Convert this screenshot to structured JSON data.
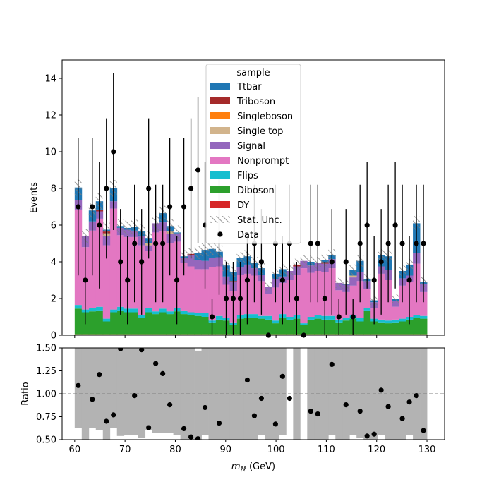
{
  "chart_data": {
    "type": "bar",
    "stacked": true,
    "main_panel": {
      "xlim": [
        57.5,
        133.5
      ],
      "ylim": [
        0,
        15
      ],
      "ylabel": "Events",
      "yticks": [
        0,
        2,
        4,
        6,
        8,
        10,
        12,
        14
      ],
      "bins": [
        60,
        61.4,
        62.8,
        64.2,
        65.6,
        67,
        68.4,
        69.8,
        71.2,
        72.6,
        74,
        75.4,
        76.8,
        78.2,
        79.6,
        81,
        82.4,
        83.8,
        85.2,
        86.6,
        88,
        89.4,
        90.8,
        92.2,
        93.6,
        95,
        96.4,
        97.8,
        99.2,
        100.6,
        102,
        103.4,
        104.8,
        106.2,
        107.6,
        109,
        110.4,
        111.8,
        113.2,
        114.6,
        116,
        117.4,
        118.8,
        120.2,
        121.6,
        123,
        124.4,
        125.8,
        127.2,
        128.6,
        130
      ],
      "series": [
        {
          "name": "DY",
          "color": "#d62728",
          "values": [
            0.05,
            0.05,
            0.05,
            0.05,
            0.05,
            0.05,
            0.05,
            0.05,
            0.05,
            0.05,
            0.05,
            0.05,
            0.05,
            0.05,
            0.05,
            0.05,
            0.05,
            0.05,
            0.05,
            0.05,
            0.05,
            0.05,
            0.05,
            0.05,
            0.05,
            0.05,
            0.05,
            0.05,
            0.05,
            0.05,
            0.05,
            0.05,
            0.05,
            0.05,
            0.05,
            0.05,
            0.05,
            0.05,
            0.05,
            0.05,
            0.05,
            0.05,
            0.05,
            0.05,
            0.05,
            0.05,
            0.05,
            0.05,
            0.05,
            0.05
          ]
        },
        {
          "name": "Diboson",
          "color": "#2ca02c",
          "values": [
            1.4,
            1.2,
            1.25,
            1.3,
            0.7,
            1.2,
            1.3,
            1.2,
            1.2,
            0.9,
            1.2,
            1.1,
            1.2,
            1.1,
            1.25,
            1.1,
            1.05,
            1.0,
            0.95,
            0.65,
            0.8,
            0.75,
            0.5,
            0.85,
            0.9,
            0.9,
            0.85,
            0.8,
            0.6,
            0.9,
            0.8,
            0.85,
            0.5,
            0.8,
            0.85,
            0.8,
            0.8,
            0.65,
            0.75,
            0.85,
            0.7,
            1.3,
            0.7,
            0.65,
            0.6,
            0.65,
            0.7,
            0.8,
            0.9,
            0.85
          ]
        },
        {
          "name": "Flips",
          "color": "#17becf",
          "values": [
            0.2,
            0.15,
            0.2,
            0.2,
            0.15,
            0.15,
            0.2,
            0.2,
            0.2,
            0.15,
            0.25,
            0.15,
            0.2,
            0.15,
            0.2,
            0.2,
            0.15,
            0.15,
            0.2,
            0.1,
            0.2,
            0.15,
            0.15,
            0.2,
            0.2,
            0.2,
            0.15,
            0.2,
            0.15,
            0.2,
            0.15,
            0.2,
            0.1,
            0.15,
            0.2,
            0.2,
            0.2,
            0.15,
            0.15,
            0.2,
            0.2,
            0.15,
            0.15,
            0.15,
            0.15,
            0.15,
            0.15,
            0.15,
            0.15,
            0.15
          ]
        },
        {
          "name": "Nonprompt",
          "color": "#e377c2",
          "values": [
            5.2,
            3.4,
            4.2,
            4.8,
            4.0,
            5.5,
            3.9,
            3.9,
            3.9,
            3.8,
            3.1,
            4.3,
            4.2,
            3.7,
            3.6,
            2.6,
            2.5,
            2.4,
            2.4,
            2.9,
            2.7,
            1.8,
            1.7,
            2.2,
            2.2,
            2.1,
            1.9,
            1.2,
            1.8,
            1.7,
            2.0,
            2.2,
            3.0,
            2.4,
            2.4,
            2.4,
            2.6,
            1.6,
            1.4,
            1.6,
            2.0,
            1.0,
            0.6,
            2.5,
            2.2,
            0.7,
            1.8,
            1.9,
            2.8,
            1.3
          ]
        },
        {
          "name": "Signal",
          "color": "#9467bd",
          "values": [
            0.5,
            0.6,
            0.5,
            0.4,
            0.5,
            0.4,
            0.4,
            0.4,
            0.35,
            0.5,
            0.3,
            0.5,
            0.5,
            0.5,
            0.45,
            0.25,
            0.6,
            0.5,
            0.45,
            0.5,
            0.5,
            0.45,
            0.5,
            0.4,
            0.5,
            0.4,
            0.35,
            0.4,
            0.45,
            0.35,
            0.5,
            0.45,
            0.4,
            0.4,
            0.45,
            0.45,
            0.5,
            0.4,
            0.4,
            0.45,
            0.5,
            0.45,
            0.3,
            0.4,
            0.55,
            0.3,
            0.4,
            0.35,
            0.6,
            0.45
          ]
        },
        {
          "name": "Single top",
          "color": "#d2b48c",
          "values": [
            0,
            0,
            0,
            0,
            0.15,
            0,
            0,
            0,
            0,
            0,
            0.1,
            0,
            0,
            0.15,
            0,
            0,
            0,
            0,
            0,
            0,
            0,
            0,
            0,
            0,
            0,
            0,
            0,
            0,
            0,
            0,
            0,
            0,
            0,
            0,
            0,
            0,
            0,
            0,
            0,
            0.1,
            0,
            0,
            0,
            0,
            0,
            0,
            0,
            0,
            0,
            0
          ]
        },
        {
          "name": "Singleboson",
          "color": "#ff7f0e",
          "values": [
            0,
            0,
            0,
            0,
            0,
            0,
            0,
            0,
            0,
            0,
            0,
            0,
            0,
            0,
            0,
            0,
            0,
            0,
            0,
            0,
            0,
            0,
            0,
            0,
            0,
            0,
            0,
            0,
            0,
            0,
            0,
            0,
            0,
            0,
            0,
            0,
            0,
            0,
            0,
            0,
            0,
            0,
            0,
            0,
            0,
            0,
            0,
            0,
            0,
            0
          ]
        },
        {
          "name": "Triboson",
          "color": "#a52a2a",
          "values": [
            0,
            0,
            0,
            0.1,
            0.1,
            0,
            0,
            0,
            0,
            0,
            0,
            0,
            0,
            0,
            0,
            0,
            0.08,
            0,
            0,
            0,
            0,
            0,
            0.05,
            0,
            0,
            0,
            0,
            0,
            0,
            0,
            0,
            0.1,
            0,
            0,
            0,
            0.08,
            0,
            0,
            0,
            0,
            0,
            0,
            0,
            0,
            0,
            0,
            0,
            0,
            0,
            0
          ]
        },
        {
          "name": "Ttbar",
          "color": "#1f77b4",
          "values": [
            0.7,
            0,
            0.6,
            0.45,
            0.1,
            0.7,
            0.1,
            0.1,
            0.2,
            0.25,
            0.3,
            0,
            0.5,
            0.3,
            0.05,
            0.1,
            0,
            0.4,
            0.6,
            0.5,
            0.3,
            0.6,
            0.5,
            0.5,
            0.45,
            0.3,
            0.35,
            0,
            0.3,
            0.4,
            0,
            0,
            0,
            0.2,
            0,
            0.1,
            0.2,
            0,
            0.05,
            0.3,
            0.6,
            0.1,
            0.1,
            0.6,
            0.75,
            0.15,
            0.4,
            0.6,
            1.6,
            0.1
          ]
        }
      ],
      "data_points": {
        "x": [
          60.7,
          62.1,
          63.5,
          64.9,
          66.3,
          67.7,
          69.1,
          70.5,
          71.9,
          73.3,
          74.7,
          76.1,
          77.5,
          78.9,
          80.3,
          81.7,
          83.1,
          84.5,
          85.9,
          87.3,
          88.7,
          90.1,
          91.5,
          92.9,
          94.3,
          95.7,
          97.1,
          98.5,
          99.9,
          101.3,
          102.7,
          104.1,
          105.5,
          106.9,
          108.3,
          109.7,
          111.1,
          112.5,
          113.9,
          115.3,
          116.7,
          118.1,
          119.5,
          120.9,
          122.3,
          123.7,
          125.1,
          126.5,
          127.9,
          129.3
        ],
        "y": [
          7,
          3,
          7,
          6,
          8,
          10,
          4,
          3,
          5,
          4,
          8,
          5,
          5,
          7,
          3,
          7,
          8,
          9,
          6,
          1,
          5.5,
          2,
          2,
          2,
          3,
          5,
          4,
          0,
          5,
          3,
          5,
          2,
          0,
          5,
          5,
          2,
          4,
          1,
          4,
          1,
          5,
          6,
          3,
          4,
          5,
          6,
          5,
          3,
          5,
          5
        ],
        "err": [
          3.74,
          2.4,
          3.74,
          3.45,
          3.82,
          4.27,
          2.88,
          2.4,
          3.2,
          2.88,
          3.82,
          3.2,
          3.2,
          3.74,
          2.4,
          3.74,
          3.82,
          3.98,
          3.45,
          1.0,
          3.3,
          2.0,
          2.0,
          2.0,
          2.4,
          3.2,
          2.88,
          0,
          3.2,
          2.4,
          3.2,
          2.0,
          0,
          3.2,
          3.2,
          2.0,
          2.88,
          1.0,
          2.88,
          1.0,
          3.2,
          3.45,
          2.4,
          2.88,
          3.2,
          3.45,
          3.2,
          2.4,
          3.2,
          3.2
        ]
      }
    },
    "ratio_panel": {
      "ylim": [
        0.5,
        1.5
      ],
      "ylabel": "Ratio",
      "yticks": [
        0.5,
        0.75,
        1.0,
        1.25,
        1.5
      ],
      "xlabel": "m_ll (GeV)",
      "xticks": [
        60,
        70,
        80,
        90,
        100,
        110,
        120,
        130
      ],
      "unc_low": [
        0.63,
        0.5,
        0.63,
        0.6,
        0.5,
        0.63,
        0.54,
        0.55,
        0.55,
        0.52,
        0.6,
        0.57,
        0.57,
        0.57,
        0.55,
        0.5,
        0.5,
        0.5,
        0.55,
        0.5,
        0.5,
        0.5,
        0.5,
        0.5,
        0.5,
        0.5,
        0.55,
        0.5,
        0.5,
        0.55,
        1.5,
        0.5,
        1.5,
        0.5,
        0.5,
        0.5,
        0.55,
        0.5,
        0.5,
        0.55,
        0.52,
        0.5,
        0.5,
        0.55,
        0.5,
        0.5,
        0.5,
        0.55,
        0.5,
        0.5
      ],
      "unc_high": [
        1.5,
        1.5,
        1.5,
        1.5,
        1.5,
        1.5,
        1.5,
        1.5,
        1.5,
        1.5,
        1.5,
        1.5,
        1.5,
        1.5,
        1.5,
        1.5,
        1.5,
        1.47,
        1.5,
        1.5,
        1.5,
        1.5,
        1.5,
        1.5,
        1.5,
        1.5,
        1.5,
        1.5,
        1.5,
        1.5,
        0.5,
        1.5,
        0.5,
        1.5,
        1.5,
        1.5,
        1.5,
        1.5,
        1.5,
        1.5,
        1.5,
        1.5,
        1.5,
        1.5,
        1.5,
        1.5,
        1.5,
        1.5,
        1.5,
        1.5
      ],
      "points": {
        "x": [
          60.7,
          63.5,
          64.9,
          66.3,
          67.7,
          69.1,
          71.9,
          73.3,
          74.7,
          76.1,
          77.5,
          78.9,
          81.7,
          83.1,
          84.5,
          85.9,
          88.7,
          94.3,
          95.7,
          97.1,
          99.9,
          101.3,
          102.7,
          106.9,
          108.3,
          111.1,
          113.9,
          116.7,
          118.1,
          119.5,
          120.9,
          122.3,
          125.1,
          126.5,
          127.9,
          129.3
        ],
        "y": [
          1.09,
          0.94,
          1.21,
          0.7,
          0.77,
          1.49,
          0.98,
          1.48,
          0.63,
          1.33,
          1.22,
          0.88,
          0.62,
          0.53,
          0.51,
          0.85,
          0.68,
          1.15,
          0.76,
          0.95,
          0.67,
          1.19,
          0.95,
          0.81,
          0.78,
          1.32,
          0.88,
          0.81,
          0.54,
          0.56,
          1.04,
          0.86,
          0.73,
          0.91,
          0.98,
          0.6
        ]
      }
    },
    "legend": {
      "title": "sample",
      "placement": "upper-center",
      "entries": [
        {
          "label": "Ttbar",
          "color": "#1f77b4",
          "kind": "patch"
        },
        {
          "label": "Triboson",
          "color": "#a52a2a",
          "kind": "patch"
        },
        {
          "label": "Singleboson",
          "color": "#ff7f0e",
          "kind": "patch"
        },
        {
          "label": "Single top",
          "color": "#d2b48c",
          "kind": "patch"
        },
        {
          "label": "Signal",
          "color": "#9467bd",
          "kind": "patch"
        },
        {
          "label": "Nonprompt",
          "color": "#e377c2",
          "kind": "patch"
        },
        {
          "label": "Flips",
          "color": "#17becf",
          "kind": "patch"
        },
        {
          "label": "Diboson",
          "color": "#2ca02c",
          "kind": "patch"
        },
        {
          "label": "DY",
          "color": "#d62728",
          "kind": "patch"
        },
        {
          "label": "Stat. Unc.",
          "color": "#808080",
          "kind": "hatch"
        },
        {
          "label": "Data",
          "color": "#000000",
          "kind": "marker"
        }
      ]
    }
  }
}
